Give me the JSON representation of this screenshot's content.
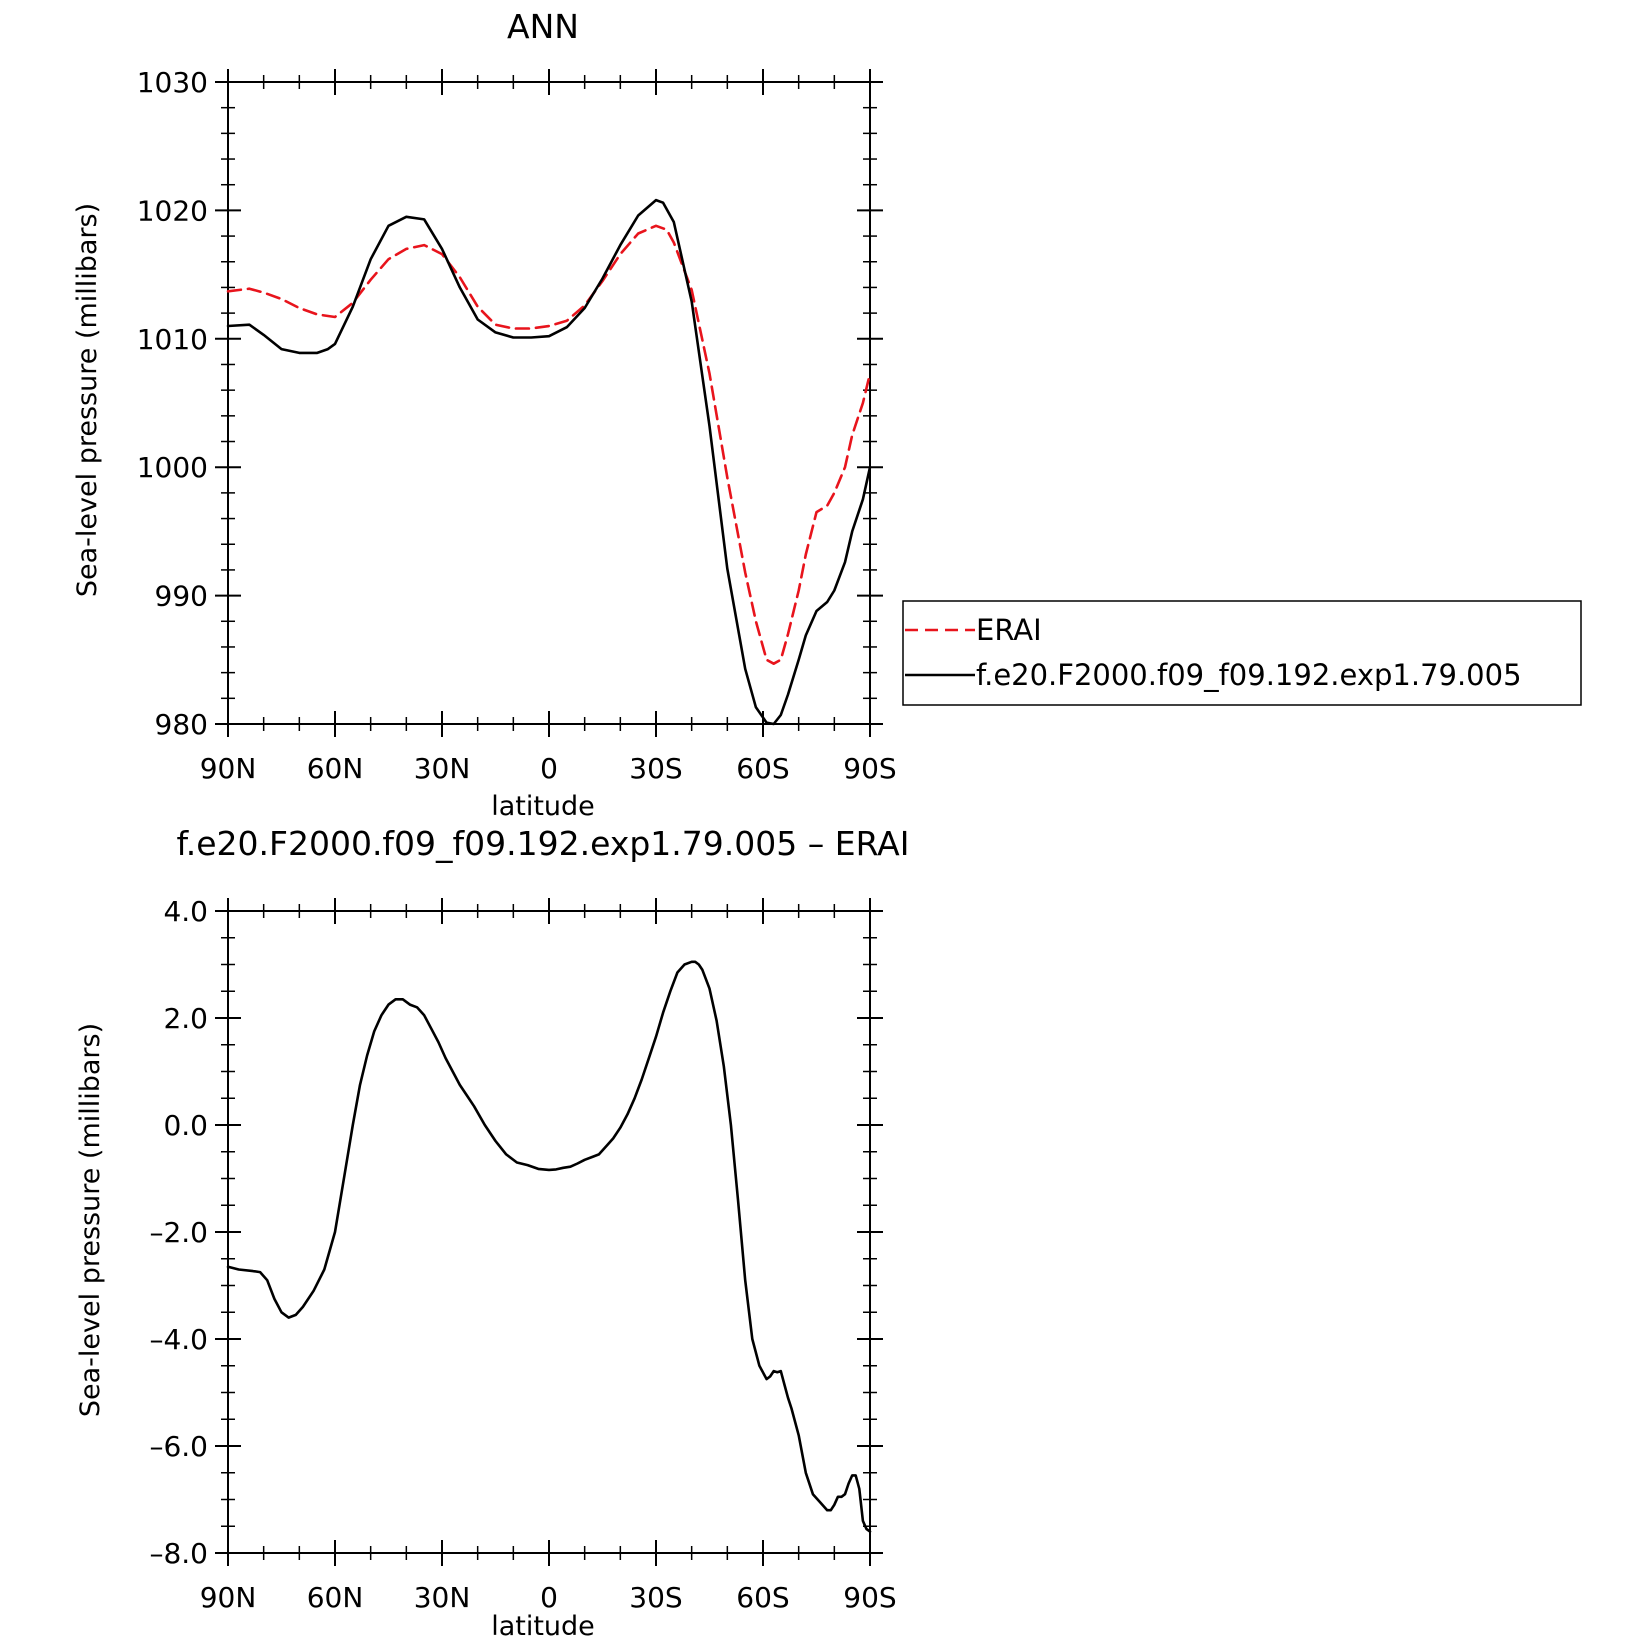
{
  "chart_data": [
    {
      "type": "line",
      "title": "ANN",
      "xlabel": "latitude",
      "ylabel": "Sea-level pressure (millibars)",
      "ylim": [
        980,
        1030
      ],
      "yticks": [
        980,
        990,
        1000,
        1010,
        1020,
        1030
      ],
      "xlim": [
        90,
        -90
      ],
      "xticks": [
        90,
        60,
        30,
        0,
        -30,
        -60,
        -90
      ],
      "xtick_labels": [
        "90N",
        "60N",
        "30N",
        "0",
        "30S",
        "60S",
        "90S"
      ],
      "legend_position": "right",
      "series": [
        {
          "name": "ERAI",
          "color": "#e8141c",
          "dash": true,
          "x": [
            90,
            84,
            80,
            75,
            70,
            65,
            60,
            55,
            50,
            45,
            40,
            35,
            30,
            25,
            20,
            15,
            10,
            5,
            0,
            -5,
            -10,
            -15,
            -20,
            -25,
            -30,
            -33,
            -35,
            -40,
            -45,
            -50,
            -55,
            -58,
            -61,
            -63,
            -65,
            -67,
            -70,
            -72,
            -75,
            -78,
            -80,
            -83,
            -85,
            -88,
            -90
          ],
          "y": [
            1013.7,
            1013.9,
            1013.6,
            1013.1,
            1012.4,
            1011.9,
            1011.7,
            1012.8,
            1014.6,
            1016.2,
            1017.0,
            1017.3,
            1016.6,
            1014.8,
            1012.5,
            1011.1,
            1010.8,
            1010.8,
            1011.0,
            1011.4,
            1012.6,
            1014.5,
            1016.6,
            1018.2,
            1018.8,
            1018.5,
            1017.5,
            1013.8,
            1007.3,
            999.2,
            991.8,
            988.0,
            985.0,
            984.7,
            985.0,
            987.0,
            990.4,
            993.2,
            996.5,
            997.0,
            998.0,
            1000.0,
            1002.5,
            1005.0,
            1007.3
          ]
        },
        {
          "name": "f.e20.F2000.f09_f09.192.exp1.79.005",
          "color": "#000000",
          "dash": false,
          "x": [
            90,
            84,
            80,
            75,
            70,
            65,
            62,
            60,
            55,
            50,
            45,
            40,
            35,
            30,
            25,
            20,
            15,
            10,
            5,
            0,
            -5,
            -10,
            -15,
            -20,
            -25,
            -30,
            -32,
            -35,
            -40,
            -45,
            -50,
            -55,
            -58,
            -61,
            -63,
            -65,
            -67,
            -70,
            -72,
            -75,
            -78,
            -80,
            -83,
            -85,
            -88,
            -90
          ],
          "y": [
            1011.0,
            1011.1,
            1010.3,
            1009.2,
            1008.9,
            1008.9,
            1009.2,
            1009.6,
            1012.5,
            1016.2,
            1018.8,
            1019.5,
            1019.3,
            1017.0,
            1014.0,
            1011.5,
            1010.5,
            1010.1,
            1010.1,
            1010.2,
            1010.9,
            1012.4,
            1014.7,
            1017.3,
            1019.6,
            1020.8,
            1020.6,
            1019.1,
            1012.9,
            1003.2,
            992.1,
            984.3,
            981.3,
            980.1,
            980.0,
            980.7,
            982.3,
            985.0,
            986.9,
            988.8,
            989.5,
            990.4,
            992.6,
            995.0,
            997.5,
            1000.0
          ]
        }
      ]
    },
    {
      "type": "line",
      "title": "f.e20.F2000.f09_f09.192.exp1.79.005 – ERAI",
      "xlabel": "latitude",
      "ylabel": "Sea-level pressure (millibars)",
      "ylim": [
        -8.0,
        4.0
      ],
      "yticks": [
        -8.0,
        -6.0,
        -4.0,
        -2.0,
        0.0,
        2.0,
        4.0
      ],
      "ytick_labels": [
        "–8.0",
        "–6.0",
        "–4.0",
        "–2.0",
        "0.0",
        "2.0",
        "4.0"
      ],
      "xlim": [
        90,
        -90
      ],
      "xticks": [
        90,
        60,
        30,
        0,
        -30,
        -60,
        -90
      ],
      "xtick_labels": [
        "90N",
        "60N",
        "30N",
        "0",
        "30S",
        "60S",
        "90S"
      ],
      "series": [
        {
          "color": "#000000",
          "dash": false,
          "x": [
            90,
            87,
            83,
            81,
            79,
            77,
            75,
            73,
            71,
            69,
            66,
            63,
            60,
            57,
            55,
            53,
            51,
            49,
            47,
            45,
            43,
            41,
            39,
            37,
            35,
            33,
            31,
            29,
            27,
            25,
            23,
            21,
            18,
            15,
            12,
            9,
            6,
            3,
            0,
            -2,
            -4,
            -6,
            -8,
            -10,
            -12,
            -14,
            -16,
            -18,
            -20,
            -22,
            -24,
            -26,
            -28,
            -30,
            -32,
            -34,
            -36,
            -38,
            -40,
            -41,
            -42,
            -43,
            -45,
            -47,
            -49,
            -51,
            -53,
            -55,
            -57,
            -59,
            -61,
            -62,
            -63,
            -64,
            -65,
            -66,
            -67,
            -68,
            -70,
            -72,
            -74,
            -76,
            -78,
            -79,
            -80,
            -81,
            -82,
            -83,
            -84,
            -85,
            -86,
            -87,
            -88,
            -89,
            -90
          ],
          "y": [
            -2.65,
            -2.7,
            -2.73,
            -2.75,
            -2.9,
            -3.25,
            -3.5,
            -3.6,
            -3.55,
            -3.4,
            -3.1,
            -2.7,
            -2.0,
            -0.8,
            0.0,
            0.75,
            1.3,
            1.75,
            2.05,
            2.25,
            2.35,
            2.35,
            2.25,
            2.2,
            2.05,
            1.8,
            1.55,
            1.25,
            1.0,
            0.75,
            0.55,
            0.35,
            0.0,
            -0.3,
            -0.55,
            -0.7,
            -0.75,
            -0.82,
            -0.84,
            -0.83,
            -0.8,
            -0.78,
            -0.72,
            -0.65,
            -0.6,
            -0.55,
            -0.4,
            -0.25,
            -0.05,
            0.2,
            0.5,
            0.85,
            1.25,
            1.65,
            2.1,
            2.5,
            2.85,
            3.0,
            3.05,
            3.05,
            3.0,
            2.9,
            2.55,
            1.95,
            1.1,
            0.0,
            -1.4,
            -2.9,
            -4.0,
            -4.5,
            -4.75,
            -4.7,
            -4.6,
            -4.62,
            -4.6,
            -4.85,
            -5.1,
            -5.3,
            -5.8,
            -6.5,
            -6.9,
            -7.05,
            -7.2,
            -7.2,
            -7.1,
            -6.95,
            -6.95,
            -6.9,
            -6.7,
            -6.55,
            -6.55,
            -6.8,
            -7.4,
            -7.55,
            -7.6
          ]
        }
      ]
    }
  ]
}
